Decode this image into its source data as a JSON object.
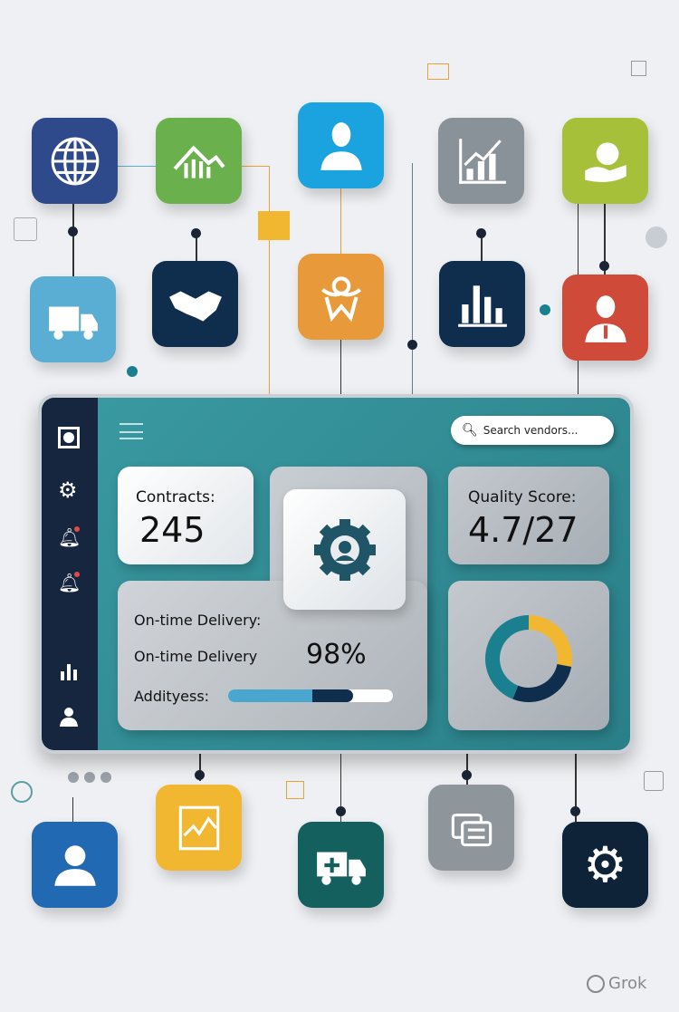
{
  "colors": {
    "dashboard_bg": "#2f8a93",
    "sidebar": "#16263f",
    "accent_yellow": "#f2b731",
    "navy": "#0f2d4d",
    "teal": "#1a7f8e"
  },
  "top_icons": [
    {
      "name": "globe-icon",
      "color": "#2e4a8a"
    },
    {
      "name": "growth-chart-icon",
      "color": "#6ab04c"
    },
    {
      "name": "person-icon",
      "color": "#1aa3de"
    },
    {
      "name": "line-bar-chart-icon",
      "color": "#8a9299"
    },
    {
      "name": "hand-money-icon",
      "color": "#a6c03a"
    },
    {
      "name": "truck-icon",
      "color": "#5aaed3"
    },
    {
      "name": "handshake-icon",
      "color": "#0f2d4d"
    },
    {
      "name": "logo-w-icon",
      "color": "#e89a3a"
    },
    {
      "name": "bar-chart-icon",
      "color": "#0f2d4d"
    },
    {
      "name": "businessman-icon",
      "color": "#d04a3a"
    }
  ],
  "bottom_icons": [
    {
      "name": "user-icon",
      "color": "#2169b3"
    },
    {
      "name": "chart-document-icon",
      "color": "#f2b731"
    },
    {
      "name": "delivery-truck-icon",
      "color": "#13605f"
    },
    {
      "name": "documents-icon",
      "color": "#8f969b"
    },
    {
      "name": "gear-icon",
      "color": "#0f2338"
    }
  ],
  "dashboard": {
    "sidebar_icons": [
      "square-icon",
      "gear-icon",
      "bell-icon",
      "bell-icon",
      "bar-chart-icon",
      "user-icon"
    ],
    "search": {
      "placeholder": "Search vendors..."
    },
    "contracts": {
      "label": "Contracts:",
      "value": "245"
    },
    "quality": {
      "label": "Quality Score:",
      "value": "4.7/27"
    },
    "delivery": {
      "heading": "On-time Delivery:",
      "label": "On-time Delivery",
      "value": "98%",
      "progress_label": "Addityess:",
      "progress": {
        "light": 0.51,
        "dark": 0.25
      }
    },
    "donut_segments": [
      {
        "color": "#f2b731",
        "fraction": 0.28
      },
      {
        "color": "#0f2d4d",
        "fraction": 0.28
      },
      {
        "color": "#1a7f8e",
        "fraction": 0.44
      }
    ]
  },
  "watermark": "Grok"
}
